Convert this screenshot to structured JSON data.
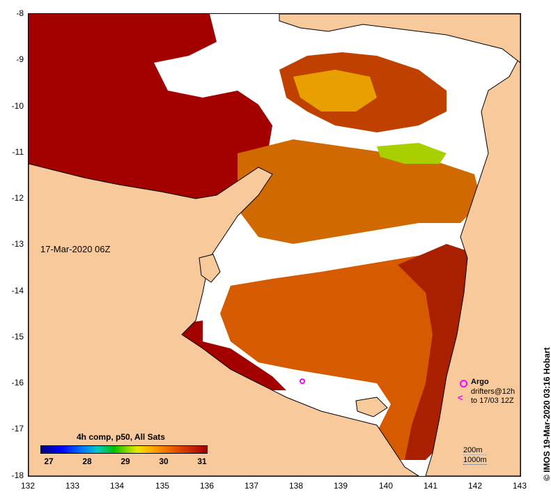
{
  "map": {
    "date_stamp": "17-Mar-2020 06Z",
    "credit": "© IMOS 19-Mar-2020 03:16 Hobart",
    "x_ticks": [
      "132",
      "133",
      "134",
      "135",
      "136",
      "137",
      "138",
      "139",
      "140",
      "141",
      "142",
      "143"
    ],
    "y_ticks": [
      "-8",
      "-9",
      "-10",
      "-11",
      "-12",
      "-13",
      "-14",
      "-15",
      "-16",
      "-17",
      "-18"
    ],
    "lon_range": [
      132,
      143
    ],
    "lat_range": [
      -18,
      -8
    ],
    "colors": {
      "land": "#f8c99b",
      "cloud": "#ffffff",
      "sst_31": "#a00000",
      "sst_30": "#e07800",
      "sst_29": "#e8e800"
    }
  },
  "colorbar": {
    "title": "4h comp, p50, All Sats",
    "labels": [
      "27",
      "28",
      "29",
      "30",
      "31"
    ]
  },
  "legend": {
    "argo": "Argo",
    "drifters_line1": "drifters@12h",
    "drifters_line2": "to 17/03 12Z",
    "drifters_symbol": "<",
    "depth_200": "200m",
    "depth_1000": "1000m"
  }
}
